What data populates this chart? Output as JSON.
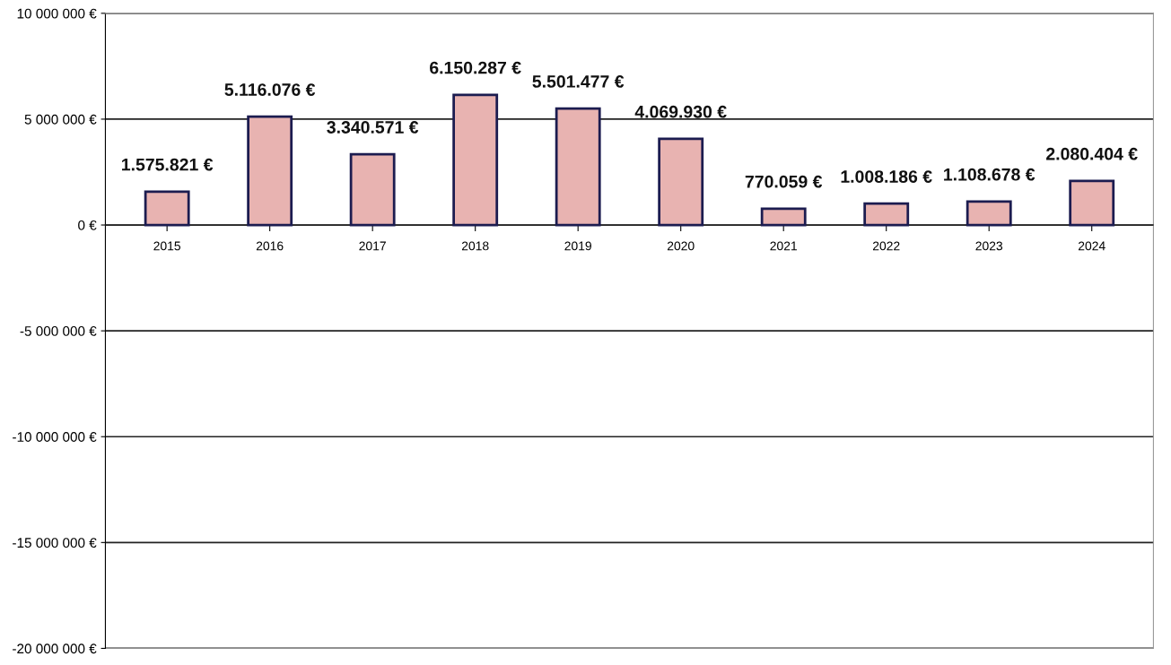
{
  "chart_data": {
    "type": "bar",
    "categories": [
      "2015",
      "2016",
      "2017",
      "2018",
      "2019",
      "2020",
      "2021",
      "2022",
      "2023",
      "2024"
    ],
    "values": [
      1575821,
      5116076,
      3340571,
      6150287,
      5501477,
      4069930,
      770059,
      1008186,
      1108678,
      2080404
    ],
    "value_labels": [
      "1.575.821 €",
      "5.116.076 €",
      "3.340.571 €",
      "6.150.287 €",
      "5.501.477 €",
      "4.069.930 €",
      "770.059 €",
      "1.008.186 €",
      "1.108.678 €",
      "2.080.404 €"
    ],
    "color": "#e8b3b1",
    "ylim": [
      -20000000,
      10000000
    ],
    "yticks": [
      {
        "value": 10000000,
        "label": "10 000 000 €"
      },
      {
        "value": 5000000,
        "label": "5 000 000 €"
      },
      {
        "value": 0,
        "label": "0 €"
      },
      {
        "value": -5000000,
        "label": "-5 000 000 €"
      },
      {
        "value": -10000000,
        "label": "-10 000 000 €"
      },
      {
        "value": -15000000,
        "label": "-15 000 000 €"
      },
      {
        "value": -20000000,
        "label": "-20 000 000 €"
      }
    ],
    "grid": "y",
    "legend": false
  }
}
